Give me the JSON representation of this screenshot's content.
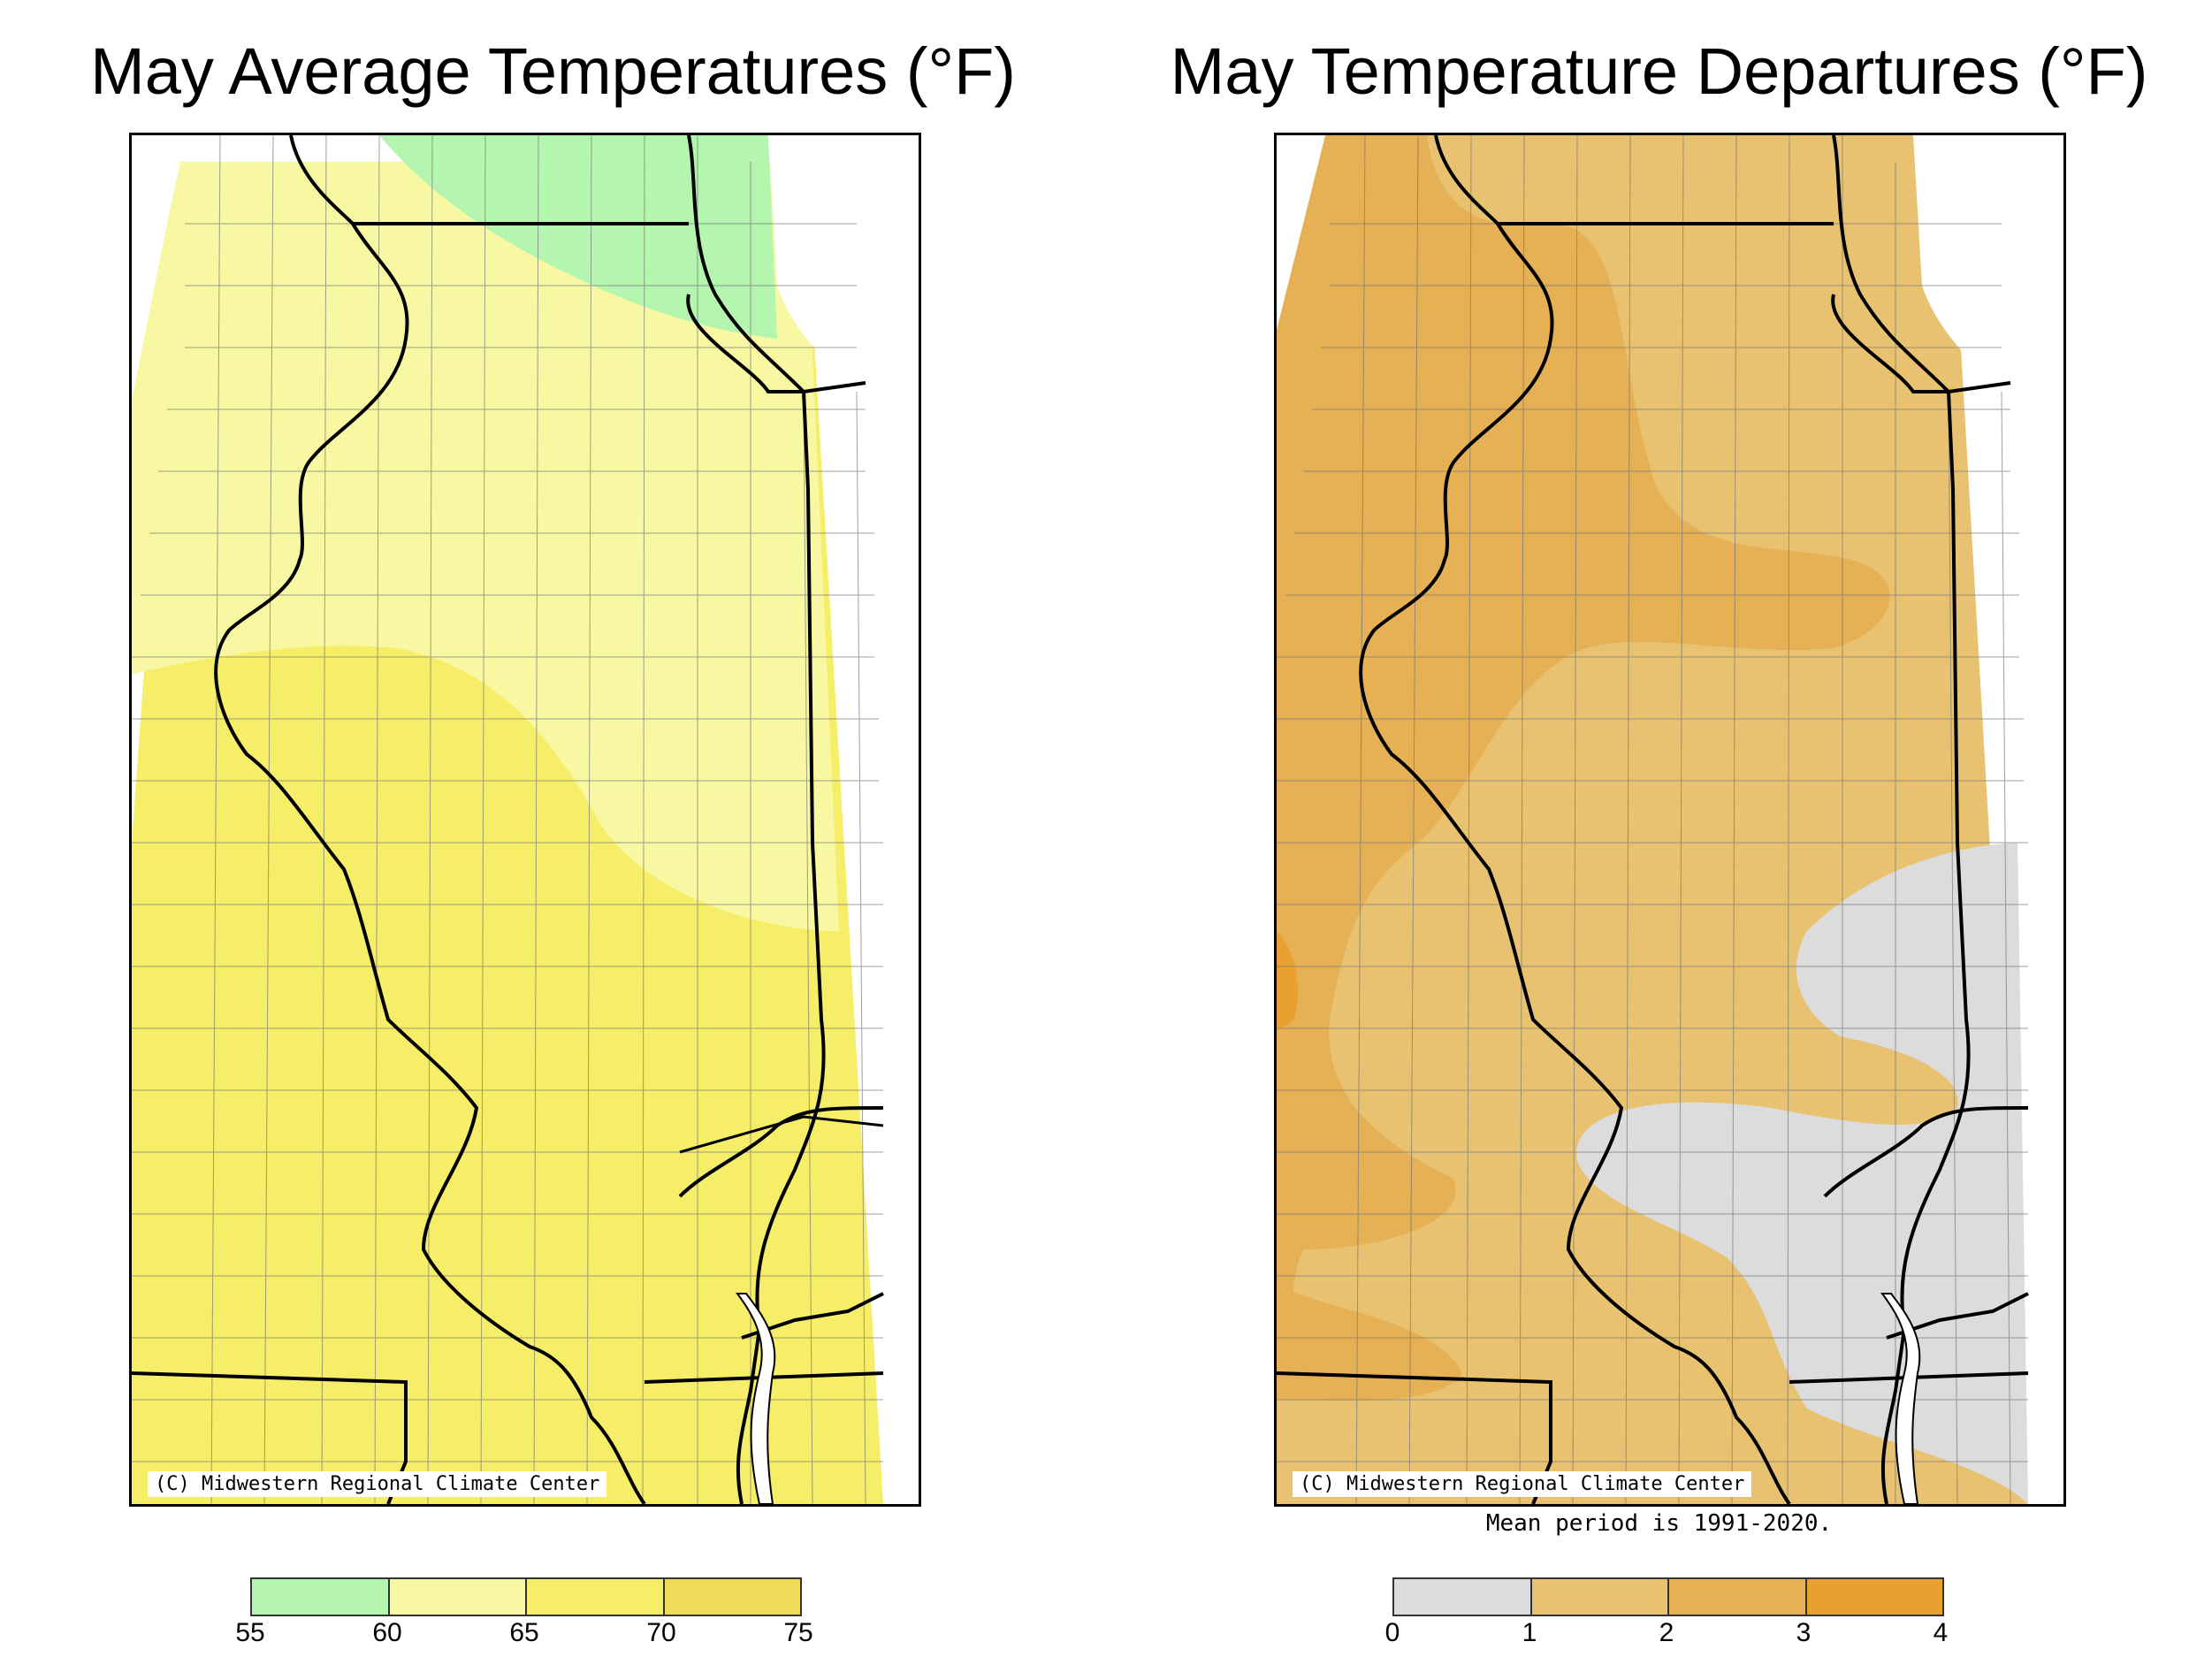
{
  "left_map": {
    "title": "May Average Temperatures (°F)",
    "credit": "(C) Midwestern Regional Climate Center",
    "legend": {
      "ticks": [
        "55",
        "60",
        "65",
        "70",
        "75"
      ],
      "bins": [
        {
          "range": "55-60",
          "color": "#b4f5b0"
        },
        {
          "range": "60-65",
          "color": "#f8f8a2"
        },
        {
          "range": "65-70",
          "color": "#f6ee68"
        },
        {
          "range": "70-75",
          "color": "#f0dc58"
        }
      ]
    }
  },
  "right_map": {
    "title": "May Temperature Departures (°F)",
    "credit": "(C) Midwestern Regional Climate Center",
    "mean_note": "Mean period is 1991-2020.",
    "legend": {
      "ticks": [
        "0",
        "1",
        "2",
        "3",
        "4"
      ],
      "bins": [
        {
          "range": "0-1",
          "color": "#dcdcdc"
        },
        {
          "range": "1-2",
          "color": "#e8c270"
        },
        {
          "range": "2-3",
          "color": "#e6b055"
        },
        {
          "range": "3-4",
          "color": "#e8a030"
        }
      ]
    }
  },
  "colors": {
    "border": "#000000",
    "county_lines": "#666666"
  }
}
